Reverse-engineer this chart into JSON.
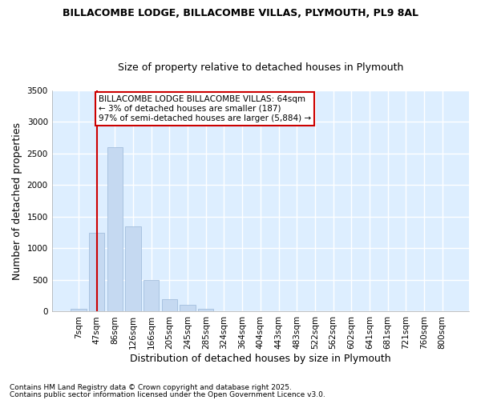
{
  "title_line1": "BILLACOMBE LODGE, BILLACOMBE VILLAS, PLYMOUTH, PL9 8AL",
  "title_line2": "Size of property relative to detached houses in Plymouth",
  "xlabel": "Distribution of detached houses by size in Plymouth",
  "ylabel": "Number of detached properties",
  "categories": [
    "7sqm",
    "47sqm",
    "86sqm",
    "126sqm",
    "166sqm",
    "205sqm",
    "245sqm",
    "285sqm",
    "324sqm",
    "364sqm",
    "404sqm",
    "443sqm",
    "483sqm",
    "522sqm",
    "562sqm",
    "602sqm",
    "641sqm",
    "681sqm",
    "721sqm",
    "760sqm",
    "800sqm"
  ],
  "values": [
    50,
    1250,
    2600,
    1350,
    500,
    200,
    110,
    50,
    10,
    5,
    2,
    5,
    0,
    0,
    0,
    0,
    0,
    0,
    0,
    0,
    0
  ],
  "bar_color": "#c5d9f1",
  "bar_edge_color": "#9ab7d8",
  "vline_x": 1.0,
  "vline_color": "#cc0000",
  "annotation_text": "BILLACOMBE LODGE BILLACOMBE VILLAS: 64sqm\n← 3% of detached houses are smaller (187)\n97% of semi-detached houses are larger (5,884) →",
  "annotation_box_facecolor": "#ffffff",
  "annotation_box_edgecolor": "#cc0000",
  "plot_bg_color": "#ddeeff",
  "fig_bg_color": "#ffffff",
  "grid_color": "#ffffff",
  "ylim": [
    0,
    3500
  ],
  "yticks": [
    0,
    500,
    1000,
    1500,
    2000,
    2500,
    3000,
    3500
  ],
  "title_fontsize": 9,
  "subtitle_fontsize": 9,
  "axis_label_fontsize": 9,
  "tick_fontsize": 7.5,
  "annotation_fontsize": 7.5,
  "footer_line1": "Contains HM Land Registry data © Crown copyright and database right 2025.",
  "footer_line2": "Contains public sector information licensed under the Open Government Licence v3.0."
}
